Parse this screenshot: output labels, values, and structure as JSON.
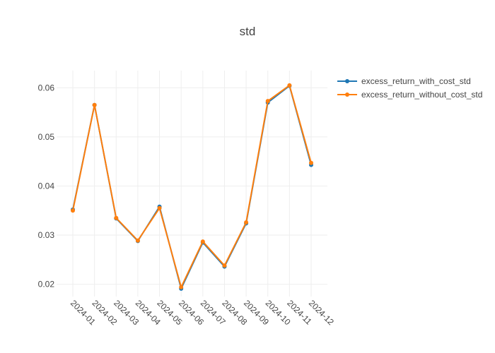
{
  "chart_data": {
    "type": "line",
    "title": "std",
    "xlabel": "",
    "ylabel": "",
    "categories": [
      "2024-01",
      "2024-02",
      "2024-03",
      "2024-04",
      "2024-05",
      "2024-06",
      "2024-07",
      "2024-08",
      "2024-09",
      "2024-10",
      "2024-11",
      "2024-12"
    ],
    "y_ticks": [
      0.02,
      0.03,
      0.04,
      0.05,
      0.06
    ],
    "ylim": [
      0.0175,
      0.0635
    ],
    "grid": true,
    "legend_position": "top-right",
    "series": [
      {
        "name": "excess_return_with_cost_std",
        "color": "#1f77b4",
        "values": [
          0.0352,
          0.0565,
          0.0334,
          0.0288,
          0.0358,
          0.0191,
          0.0285,
          0.0236,
          0.0324,
          0.057,
          0.0604,
          0.0443
        ]
      },
      {
        "name": "excess_return_without_cost_std",
        "color": "#ff7f0e",
        "values": [
          0.035,
          0.0565,
          0.0335,
          0.0289,
          0.0355,
          0.0194,
          0.0287,
          0.0238,
          0.0326,
          0.0573,
          0.0605,
          0.0447
        ]
      }
    ]
  }
}
